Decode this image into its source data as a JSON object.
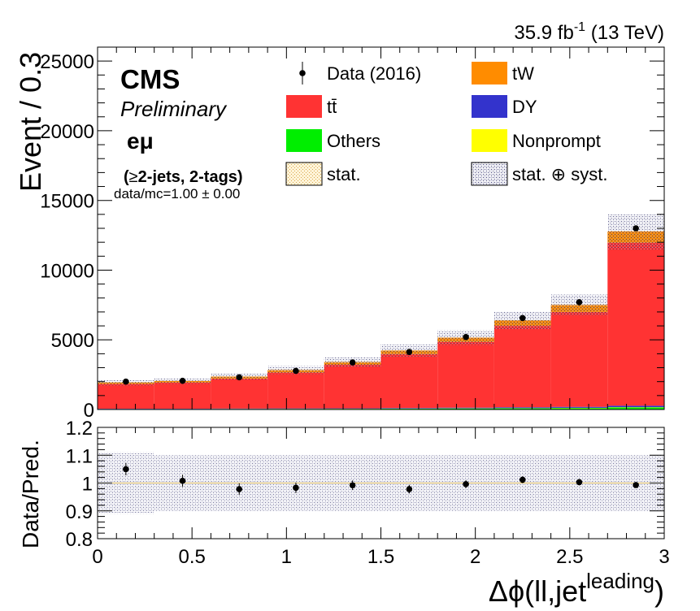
{
  "header": {
    "lumi_text": "35.9 fb",
    "lumi_exp": "-1",
    "lumi_suffix": " (13 TeV)"
  },
  "labels": {
    "cms": "CMS",
    "preliminary": "Preliminary",
    "channel": "eμ",
    "selection_prefix": "(",
    "selection_ge": "≥",
    "selection_main": "2-jets, 2-tags)",
    "data_mc": "data/mc=1.00 ± 0.00"
  },
  "axes": {
    "top_ylabel": "Event / 0.3",
    "ratio_ylabel": "Data/Pred.",
    "xlabel_main": "Δϕ(ll,jet",
    "xlabel_sup": "leading",
    "xlabel_close": ")"
  },
  "legend": [
    {
      "label": "Data (2016)",
      "style": "marker",
      "color": "#000000"
    },
    {
      "label": "tW",
      "style": "fill",
      "color": "#ff8c00"
    },
    {
      "label": "tt̄",
      "style": "fill",
      "color": "#ff3333"
    },
    {
      "label": "DY",
      "style": "fill",
      "color": "#3333cc"
    },
    {
      "label": "Others",
      "style": "fill",
      "color": "#00ee00"
    },
    {
      "label": "Nonprompt",
      "style": "fill",
      "color": "#ffff00"
    },
    {
      "label": "stat.",
      "style": "hatch",
      "color": "#e8c070"
    },
    {
      "label": "stat. ⊕ syst.",
      "style": "hatch",
      "color": "#4a4a7a"
    }
  ],
  "chart_data": [
    {
      "type": "bar",
      "stacked": true,
      "x_edges": [
        0,
        0.3,
        0.6,
        0.9,
        1.2,
        1.5,
        1.8,
        2.1,
        2.4,
        2.7,
        3.0
      ],
      "xlim": [
        0,
        3
      ],
      "ylim": [
        0,
        26000
      ],
      "y_ticks": [
        0,
        5000,
        10000,
        15000,
        20000,
        25000
      ],
      "ylabel": "Event / 0.3",
      "series": [
        {
          "name": "Others",
          "color": "#00ee00",
          "values": [
            30,
            30,
            35,
            40,
            45,
            55,
            70,
            85,
            100,
            150
          ]
        },
        {
          "name": "Nonprompt",
          "color": "#ffff00",
          "values": [
            10,
            10,
            10,
            10,
            10,
            15,
            15,
            15,
            20,
            20
          ]
        },
        {
          "name": "DY",
          "color": "#3333cc",
          "values": [
            20,
            20,
            25,
            30,
            30,
            40,
            50,
            60,
            70,
            100
          ]
        },
        {
          "name": "tt̄",
          "color": "#ff3333",
          "values": [
            1770,
            1870,
            2150,
            2580,
            3120,
            3870,
            4720,
            5840,
            6810,
            11700
          ]
        },
        {
          "name": "tW",
          "color": "#ff8c00",
          "values": [
            110,
            120,
            140,
            170,
            200,
            250,
            300,
            400,
            500,
            800
          ]
        }
      ],
      "data": {
        "name": "Data (2016)",
        "x": [
          0.15,
          0.45,
          0.75,
          1.05,
          1.35,
          1.65,
          1.95,
          2.25,
          2.55,
          2.85
        ],
        "y": [
          2000,
          2060,
          2310,
          2770,
          3380,
          4130,
          5200,
          6560,
          7700,
          13000
        ]
      },
      "syst_band": {
        "name": "stat. ⊕ syst.",
        "values": [
          1940,
          2050,
          2360,
          2830,
          3405,
          4230,
          5155,
          6400,
          7500,
          12770
        ],
        "rel_err": [
          0.11,
          0.1,
          0.1,
          0.1,
          0.1,
          0.1,
          0.1,
          0.1,
          0.1,
          0.1
        ]
      }
    },
    {
      "type": "scatter",
      "xlim": [
        0,
        3
      ],
      "ylim": [
        0.8,
        1.2
      ],
      "y_ticks": [
        0.8,
        0.9,
        1,
        1.1,
        1.2
      ],
      "x_ticks": [
        0,
        0.5,
        1,
        1.5,
        2,
        2.5,
        3
      ],
      "ylabel": "Data/Pred.",
      "x": [
        0.15,
        0.45,
        0.75,
        1.05,
        1.35,
        1.65,
        1.95,
        2.25,
        2.55,
        2.85
      ],
      "y": [
        1.05,
        1.008,
        0.978,
        0.983,
        0.992,
        0.978,
        0.996,
        1.012,
        1.003,
        0.993
      ],
      "band_rel_err": [
        0.11,
        0.1,
        0.1,
        0.1,
        0.1,
        0.1,
        0.1,
        0.1,
        0.1,
        0.1
      ]
    }
  ]
}
